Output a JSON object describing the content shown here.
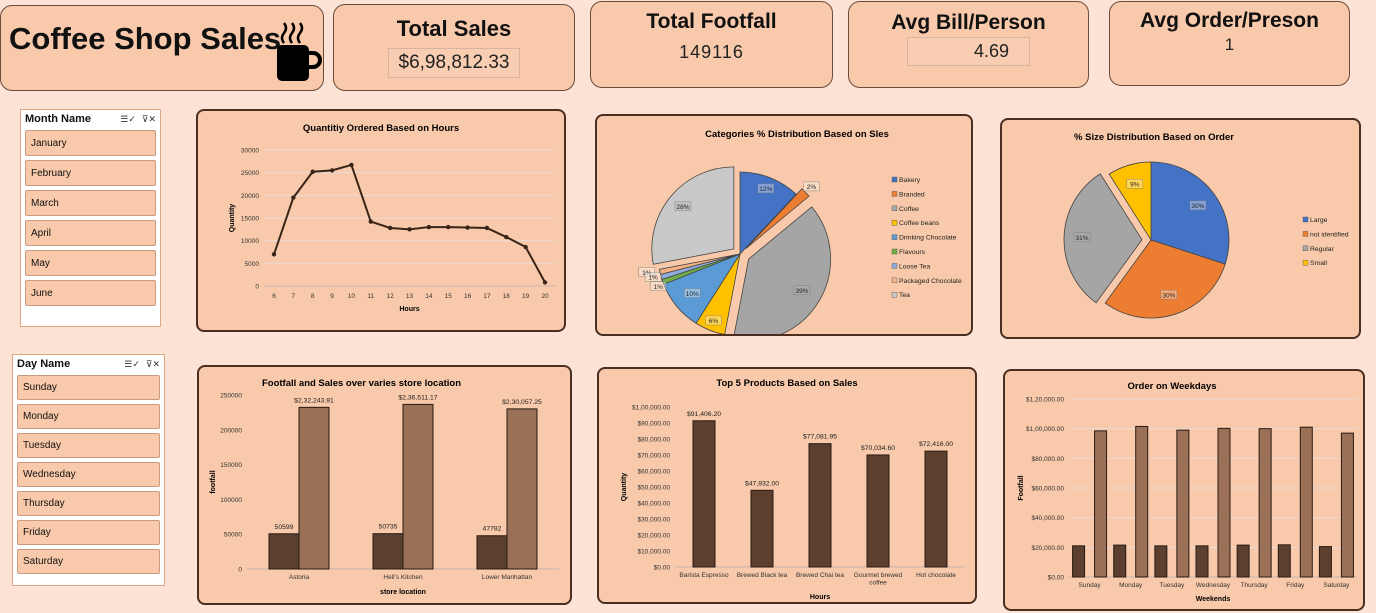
{
  "kpis": {
    "title": "Coffee Shop Sales",
    "total_sales": {
      "label": "Total Sales",
      "value": "$6,98,812.33"
    },
    "total_footfall": {
      "label": "Total Footfall",
      "value": "149116"
    },
    "avg_bill": {
      "label": "Avg Bill/Person",
      "value": "4.69"
    },
    "avg_order": {
      "label": "Avg Order/Preson",
      "value": "1"
    }
  },
  "slicers": {
    "month": {
      "title": "Month Name",
      "items": [
        "January",
        "February",
        "March",
        "April",
        "May",
        "June"
      ]
    },
    "day": {
      "title": "Day Name",
      "items": [
        "Sunday",
        "Monday",
        "Tuesday",
        "Wednesday",
        "Thursday",
        "Friday",
        "Saturday"
      ]
    }
  },
  "icons": {
    "multi_select": "multi-select-icon",
    "clear_filter": "clear-filter-icon",
    "coffee_cup": "coffee-cup-icon"
  },
  "colors": {
    "background": "#fde3d6",
    "card": "#f8c9aa",
    "border": "#4a2e22",
    "dark_bar": "#5c3f2e",
    "light_bar": "#9a7157"
  },
  "chart_data": [
    {
      "id": "hours",
      "type": "line",
      "title": "Quantitiy Ordered Based on Hours",
      "xlabel": "Hours",
      "ylabel": "Quantity",
      "x": [
        6,
        7,
        8,
        9,
        10,
        11,
        12,
        13,
        14,
        15,
        16,
        17,
        18,
        19,
        20
      ],
      "values": [
        7000,
        19500,
        25200,
        25500,
        26700,
        14200,
        12800,
        12500,
        13000,
        13000,
        12900,
        12800,
        10800,
        8600,
        800
      ],
      "yticks": [
        "0",
        "5000",
        "10000",
        "15000",
        "20000",
        "25000",
        "30000"
      ],
      "ylim": [
        0,
        30000
      ],
      "grid": true
    },
    {
      "id": "categories",
      "type": "pie",
      "title": "Categories % Distribution Based on Sles",
      "categories": [
        "Bakery",
        "Branded",
        "Coffee",
        "Coffee beans",
        "Drinking Chocolate",
        "Flavours",
        "Loose Tea",
        "Packaged Chocolate",
        "Tea"
      ],
      "values": [
        12,
        2,
        39,
        6,
        10,
        1,
        1,
        1,
        28
      ],
      "labels": [
        "12%",
        "2%",
        "39%",
        "6%",
        "10%",
        "1%",
        "1%",
        "1%",
        "28%"
      ],
      "colors": [
        "#4472c4",
        "#ed7d31",
        "#a5a5a5",
        "#ffc000",
        "#5b9bd5",
        "#70ad47",
        "#8faadc",
        "#f4b183",
        "#c9c9c9"
      ],
      "legend": "right"
    },
    {
      "id": "sizes",
      "type": "pie",
      "title": "% Size Distribution Based on Order",
      "categories": [
        "Large",
        "not identified",
        "Regular",
        "Small"
      ],
      "values": [
        30,
        30,
        31,
        9
      ],
      "labels": [
        "30%",
        "30%",
        "31%",
        "9%"
      ],
      "colors": [
        "#4472c4",
        "#ed7d31",
        "#a5a5a5",
        "#ffc000"
      ],
      "legend": "right"
    },
    {
      "id": "stores",
      "type": "bar",
      "title": "Footfall and Sales over varies store location",
      "xlabel": "store location",
      "ylabel": "footfall",
      "categories": [
        "Astoria",
        "Hell's Kitchen",
        "Lower Manhattan"
      ],
      "series": [
        {
          "values": [
            50599,
            50735,
            47782
          ],
          "labels": [
            "50599",
            "50735",
            "47782"
          ]
        },
        {
          "values": [
            232243.91,
            236511.17,
            230057.25
          ],
          "labels": [
            "$2,32,243.91",
            "$2,36,511.17",
            "$2,30,057.25"
          ]
        }
      ],
      "yticks": [
        "0",
        "50000",
        "100000",
        "150000",
        "200000",
        "250000"
      ],
      "ylim": [
        0,
        250000
      ]
    },
    {
      "id": "products",
      "type": "bar",
      "title": "Top 5 Products Based on Sales",
      "xlabel": "Hours",
      "ylabel": "Quantity",
      "categories": [
        "Barista Espresso",
        "Brewed Black tea",
        "Brewed Chai tea",
        "Gourmet brewed coffee",
        "Hot chocolate"
      ],
      "values": [
        91406.2,
        47932.0,
        77081.95,
        70034.6,
        72416.0
      ],
      "labels": [
        "$91,406.20",
        "$47,932.00",
        "$77,081.95",
        "$70,034.60",
        "$72,416.00"
      ],
      "yticks": [
        "$0.00",
        "$10,000.00",
        "$20,000.00",
        "$30,000.00",
        "$40,000.00",
        "$50,000.00",
        "$60,000.00",
        "$70,000.00",
        "$80,000.00",
        "$90,000.00",
        "$1,00,000.00"
      ],
      "ylim": [
        0,
        100000
      ]
    },
    {
      "id": "weekdays",
      "type": "bar",
      "title": "Order on Weekdays",
      "xlabel": "Weekends",
      "ylabel": "Footfall",
      "categories": [
        "Sunday",
        "Monday",
        "Tuesday",
        "Wednesday",
        "Thursday",
        "Friday",
        "Saturday"
      ],
      "series": [
        {
          "values": [
            21000,
            21500,
            21000,
            21000,
            21500,
            21700,
            20500
          ]
        },
        {
          "values": [
            98500,
            101500,
            99000,
            100200,
            100000,
            101000,
            97000
          ]
        }
      ],
      "yticks": [
        "$0.00",
        "$20,000.00",
        "$40,000.00",
        "$60,000.00",
        "$80,000.00",
        "$1,00,000.00",
        "$1,20,000.00"
      ],
      "ylim": [
        0,
        120000
      ],
      "grid": true
    }
  ]
}
